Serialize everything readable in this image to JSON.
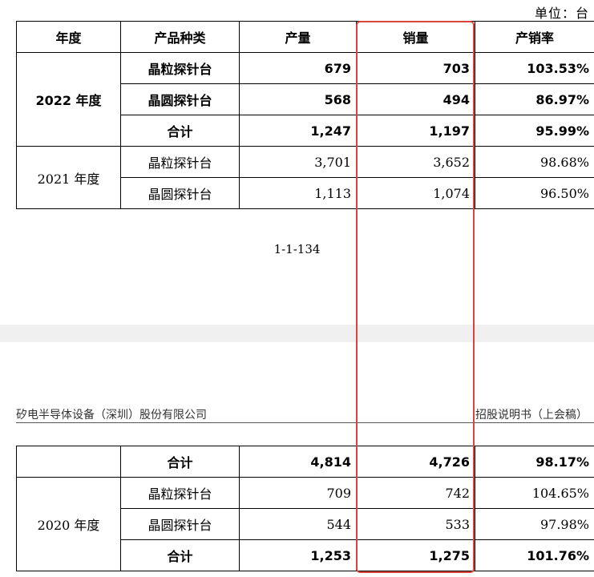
{
  "unit_label": "单位：台",
  "table1": {
    "headers": [
      "年度",
      "产品种类",
      "产量",
      "销量",
      "产销率"
    ],
    "year_2022": "2022 年度",
    "rows_2022": [
      {
        "product": "晶粒探针台",
        "output": "679",
        "sales": "703",
        "rate": "103.53%"
      },
      {
        "product": "晶圆探针台",
        "output": "568",
        "sales": "494",
        "rate": "86.97%"
      },
      {
        "product": "合计",
        "output": "1,247",
        "sales": "1,197",
        "rate": "95.99%"
      }
    ],
    "year_2021": "2021 年度",
    "rows_2021": [
      {
        "product": "晶粒探针台",
        "output": "3,701",
        "sales": "3,652",
        "rate": "98.68%"
      },
      {
        "product": "晶圆探针台",
        "output": "1,113",
        "sales": "1,074",
        "rate": "96.50%"
      }
    ]
  },
  "page_number": "1-1-134",
  "page_header": {
    "company": "矽电半导体设备（深圳）股份有限公司",
    "doc": "招股说明书（上会稿）"
  },
  "table2": {
    "row_2021_total": {
      "product": "合计",
      "output": "4,814",
      "sales": "4,726",
      "rate": "98.17%"
    },
    "year_2020": "2020 年度",
    "rows_2020": [
      {
        "product": "晶粒探针台",
        "output": "709",
        "sales": "742",
        "rate": "104.65%"
      },
      {
        "product": "晶圆探针台",
        "output": "544",
        "sales": "533",
        "rate": "97.98%"
      },
      {
        "product": "合计",
        "output": "1,253",
        "sales": "1,275",
        "rate": "101.76%"
      }
    ]
  },
  "colors": {
    "highlight": "#d9453b"
  }
}
